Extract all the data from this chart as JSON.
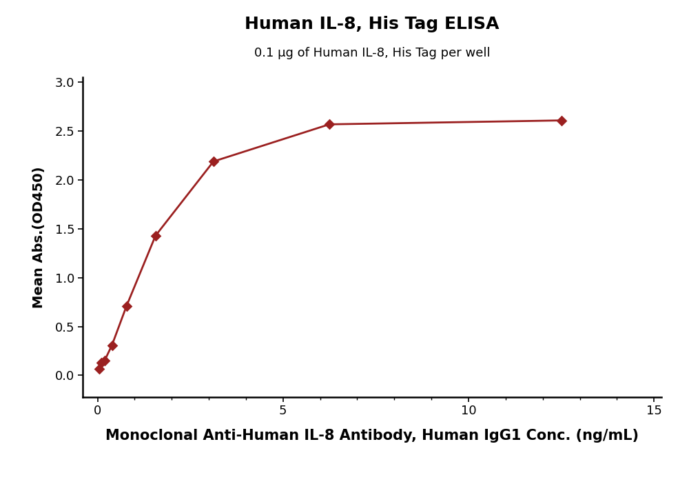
{
  "title": "Human IL-8, His Tag ELISA",
  "subtitle": "0.1 μg of Human IL-8, His Tag per well",
  "xlabel": "Monoclonal Anti-Human IL-8 Antibody, Human IgG1 Conc. (ng/mL)",
  "ylabel": "Mean Abs.(OD450)",
  "x_data": [
    0.049,
    0.098,
    0.195,
    0.39,
    0.781,
    1.563,
    3.125,
    6.25,
    12.5
  ],
  "y_data": [
    0.07,
    0.13,
    0.155,
    0.31,
    0.71,
    1.43,
    2.19,
    2.57,
    2.61
  ],
  "xlim": [
    -0.4,
    15.2
  ],
  "ylim": [
    -0.22,
    3.05
  ],
  "xticks": [
    0,
    5,
    10,
    15
  ],
  "yticks": [
    0.0,
    0.5,
    1.0,
    1.5,
    2.0,
    2.5,
    3.0
  ],
  "color": "#9B2020",
  "marker": "D",
  "markersize": 8,
  "linewidth": 2.0,
  "title_fontsize": 18,
  "subtitle_fontsize": 13,
  "xlabel_fontsize": 15,
  "ylabel_fontsize": 14,
  "tick_fontsize": 13,
  "background_color": "#ffffff"
}
